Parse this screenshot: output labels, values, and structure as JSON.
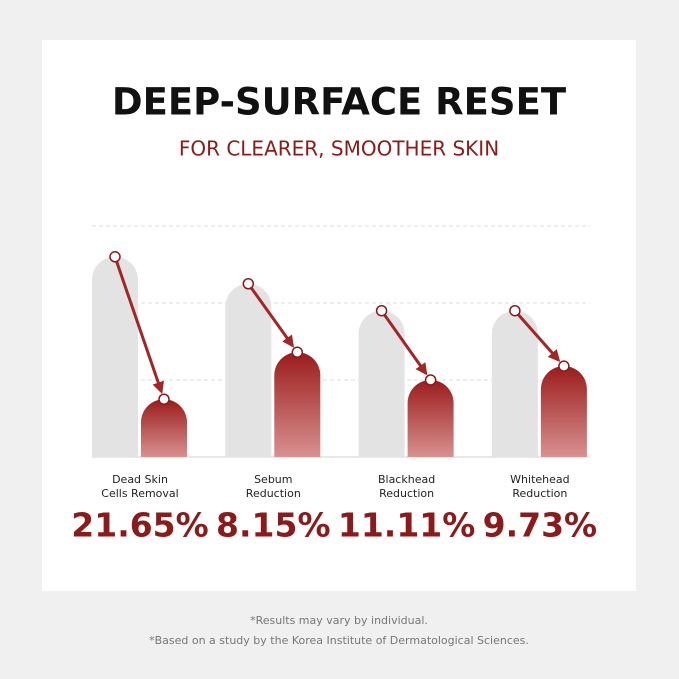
{
  "chart_data": {
    "type": "bar",
    "title": "DEEP-SURFACE RESET",
    "subtitle": "FOR CLEARER, SMOOTHER SKIN",
    "categories": [
      [
        "Dead Skin",
        "Cells Removal"
      ],
      [
        "Sebum",
        "Reduction"
      ],
      [
        "Blackhead",
        "Reduction"
      ],
      [
        "Whitehead",
        "Reduction"
      ]
    ],
    "series": [
      {
        "color": "#e3e3e3",
        "values": [
          2.6,
          2.25,
          1.9,
          1.9
        ]
      },
      {
        "color": "#9b1c1c",
        "values": [
          0.75,
          1.36,
          1.0,
          1.18
        ]
      }
    ],
    "ylim": [
      0,
      3
    ],
    "grid_lines": [
      1,
      2,
      3
    ],
    "reductions": [
      21.65,
      8.15,
      11.11,
      9.73
    ],
    "reduction_labels": [
      "21.65%",
      "8.15%",
      "11.11%",
      "9.73%"
    ],
    "footnotes": [
      "*Results may vary by individual.",
      "*Based on a study by the Korea Institute of Dermatological Sciences."
    ]
  }
}
